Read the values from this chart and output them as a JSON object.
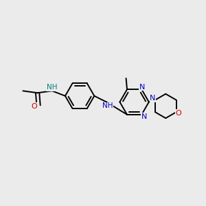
{
  "bg_color": "#ebebeb",
  "bond_color": "#000000",
  "n_color": "#0000cc",
  "o_color": "#cc0000",
  "nh_color": "#008080",
  "font_size": 8.0,
  "lw": 1.4,
  "xlim": [
    0,
    10
  ],
  "ylim": [
    0,
    10
  ]
}
